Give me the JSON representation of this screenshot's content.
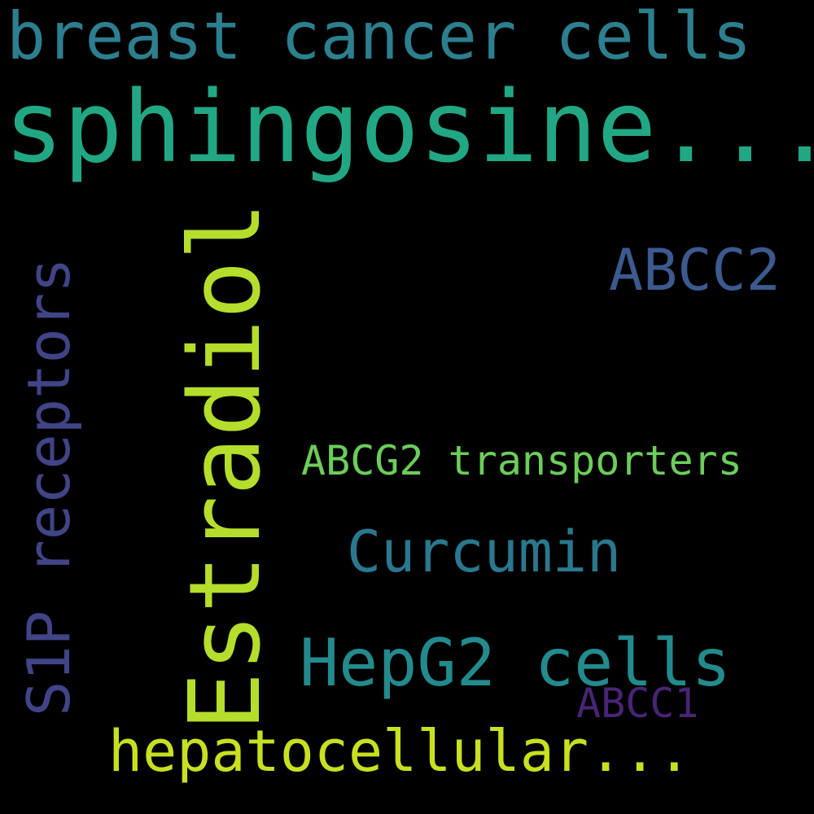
{
  "word_cloud": {
    "words": [
      {
        "text": "breast cancer cells",
        "color": "#2c7f8e"
      },
      {
        "text": "sphingosine...",
        "color": "#22a784"
      },
      {
        "text": "Estradiol",
        "color": "#b5dd2b"
      },
      {
        "text": "ABCC2",
        "color": "#3c5a8f"
      },
      {
        "text": "S1P receptors",
        "color": "#414487"
      },
      {
        "text": "ABCG2 transporters",
        "color": "#6ccd5a"
      },
      {
        "text": "Curcumin",
        "color": "#2a788e"
      },
      {
        "text": "HepG2 cells",
        "color": "#238a8d"
      },
      {
        "text": "ABCC1",
        "color": "#482475"
      },
      {
        "text": "hepatocellular...",
        "color": "#c8e020"
      }
    ]
  }
}
